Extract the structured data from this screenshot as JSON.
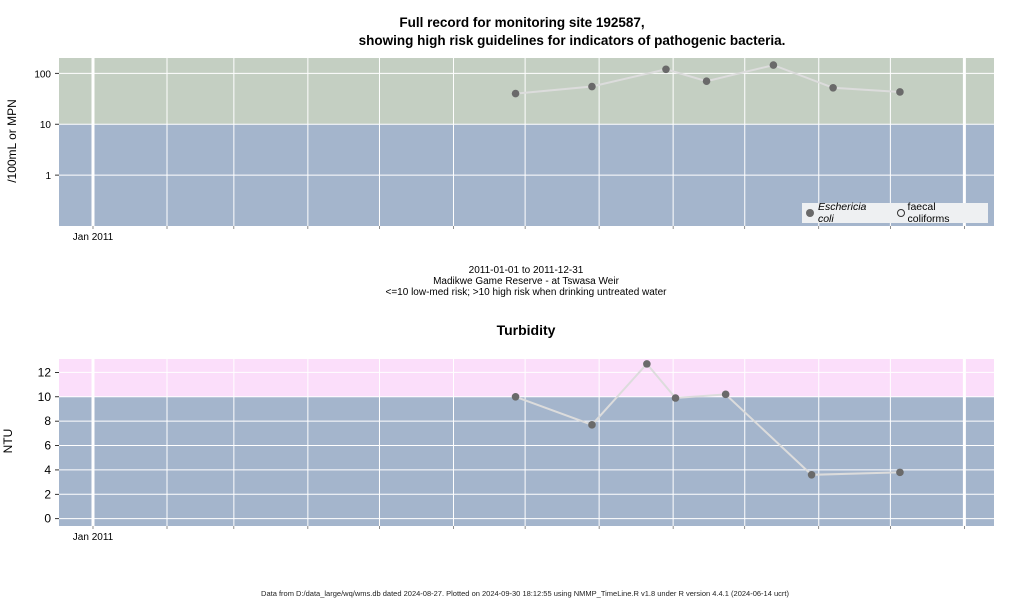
{
  "title": {
    "line1": "Full record for monitoring site 192587,",
    "line2": "showing high risk guidelines for indicators of pathogenic bacteria."
  },
  "caption": {
    "line1": "2011-01-01 to 2011-12-31",
    "line2": "Madikwe Game Reserve - at Tswasa Weir",
    "line3": "<=10 low-med risk; >10 high risk when drinking untreated water"
  },
  "footer": "Data from D:/data_large/wq/wms.db dated 2024-08-27. Plotted on 2024-09-30 18:12:55 using NMMP_TimeLine.R v1.8 under R version 4.4.1 (2024-06-14 ucrt)",
  "colors": {
    "band_low": "#a4b5cc",
    "band_high_bacteria": "#c4cfc2",
    "band_high_turbidity": "#fbdefa",
    "grid": "#ffffff",
    "series": "#6a6a6a",
    "line": "#dcdcdc"
  },
  "chart_data": [
    {
      "type": "line",
      "title": "",
      "xlabel": "",
      "ylabel": "/100mL or MPN",
      "yscale": "log",
      "xlim": [
        "2011-01-01",
        "2011-12-31"
      ],
      "ylim": [
        0.1,
        200
      ],
      "yticks": [
        1,
        10,
        100
      ],
      "ytick_labels": [
        "1",
        "10",
        "100"
      ],
      "xtick_labels": [
        "Jan 2011"
      ],
      "threshold": 10,
      "legend_position": "bottom-right",
      "legend": [
        "Eschericia coli",
        "faecal coliforms"
      ],
      "series": [
        {
          "name": "Eschericia coli",
          "x": [
            "2011-06-27",
            "2011-07-29",
            "2011-08-29",
            "2011-09-15",
            "2011-10-13",
            "2011-11-07",
            "2011-12-05"
          ],
          "y": [
            40,
            55,
            120,
            70,
            145,
            52,
            43
          ]
        },
        {
          "name": "faecal coliforms",
          "x": [],
          "y": []
        }
      ]
    },
    {
      "type": "line",
      "title": "Turbidity",
      "xlabel": "",
      "ylabel": "NTU",
      "yscale": "linear",
      "xlim": [
        "2011-01-01",
        "2011-12-31"
      ],
      "ylim": [
        -0.6,
        13.1
      ],
      "yticks": [
        0,
        2,
        4,
        6,
        8,
        10,
        12
      ],
      "ytick_labels": [
        "0",
        "2",
        "4",
        "6",
        "8",
        "10",
        "12"
      ],
      "xtick_labels": [
        "Jan 2011"
      ],
      "threshold": 10,
      "series": [
        {
          "name": "Turbidity",
          "x": [
            "2011-06-27",
            "2011-07-29",
            "2011-08-21",
            "2011-09-02",
            "2011-09-23",
            "2011-10-29",
            "2011-12-05"
          ],
          "y": [
            10.0,
            7.7,
            12.7,
            9.9,
            10.2,
            3.6,
            3.8
          ]
        }
      ]
    }
  ]
}
